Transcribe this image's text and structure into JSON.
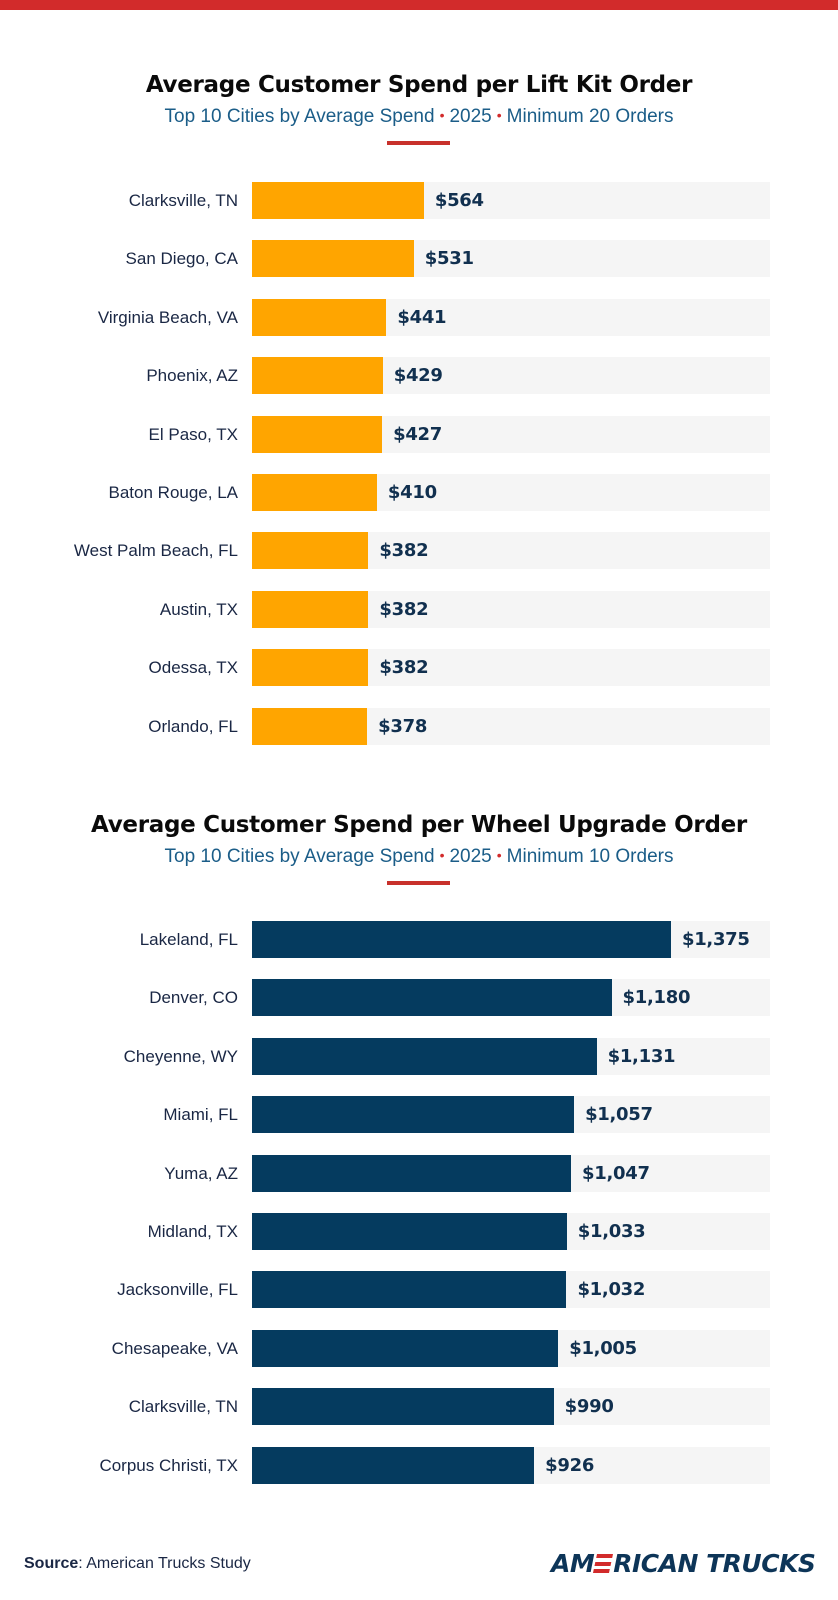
{
  "header": {
    "accent_color": "#d22b2b"
  },
  "charts": [
    {
      "title": "Average Customer Spend per Lift Kit Order",
      "subtitle_parts": [
        "Top 10 Cities by Average Spend",
        "2025",
        "Minimum 20 Orders"
      ],
      "separator": "•",
      "bar_color": "#ffa500"
    },
    {
      "title": "Average Customer Spend per Wheel Upgrade Order",
      "subtitle_parts": [
        "Top 10 Cities by Average Spend",
        "2025",
        "Minimum 10 Orders"
      ],
      "separator": "•",
      "bar_color": "#053b5f"
    }
  ],
  "chart_data": [
    {
      "type": "bar",
      "orientation": "horizontal",
      "title": "Average Customer Spend per Lift Kit Order",
      "subtitle": "Top 10 Cities by Average Spend • 2025 • Minimum 20 Orders",
      "xlabel": "",
      "ylabel": "",
      "xlim": [
        0,
        1700
      ],
      "grid": false,
      "legend": "none",
      "categories": [
        "Clarksville, TN",
        "San Diego, CA",
        "Virginia Beach, VA",
        "Phoenix, AZ",
        "El Paso, TX",
        "Baton Rouge, LA",
        "West Palm Beach, FL",
        "Austin, TX",
        "Odessa, TX",
        "Orlando, FL"
      ],
      "values": [
        564,
        531,
        441,
        429,
        427,
        410,
        382,
        382,
        382,
        378
      ],
      "value_labels": [
        "$564",
        "$531",
        "$441",
        "$429",
        "$427",
        "$410",
        "$382",
        "$382",
        "$382",
        "$378"
      ]
    },
    {
      "type": "bar",
      "orientation": "horizontal",
      "title": "Average Customer Spend per Wheel Upgrade Order",
      "subtitle": "Top 10 Cities by Average Spend • 2025 • Minimum 10 Orders",
      "xlabel": "",
      "ylabel": "",
      "xlim": [
        0,
        1700
      ],
      "grid": false,
      "legend": "none",
      "categories": [
        "Lakeland, FL",
        "Denver, CO",
        "Cheyenne, WY",
        "Miami, FL",
        "Yuma, AZ",
        "Midland, TX",
        "Jacksonville, FL",
        "Chesapeake, VA",
        "Clarksville, TN",
        "Corpus Christi, TX"
      ],
      "values": [
        1375,
        1180,
        1131,
        1057,
        1047,
        1033,
        1032,
        1005,
        990,
        926
      ],
      "value_labels": [
        "$1,375",
        "$1,180",
        "$1,131",
        "$1,057",
        "$1,047",
        "$1,033",
        "$1,032",
        "$1,005",
        "$990",
        "$926"
      ]
    }
  ],
  "footer": {
    "source_label": "Source",
    "source_text": ": American Trucks Study",
    "logo_left": "AM",
    "logo_right": "RICAN TRUCKS",
    "logo_e_icon": "red-stripes-e-icon"
  }
}
